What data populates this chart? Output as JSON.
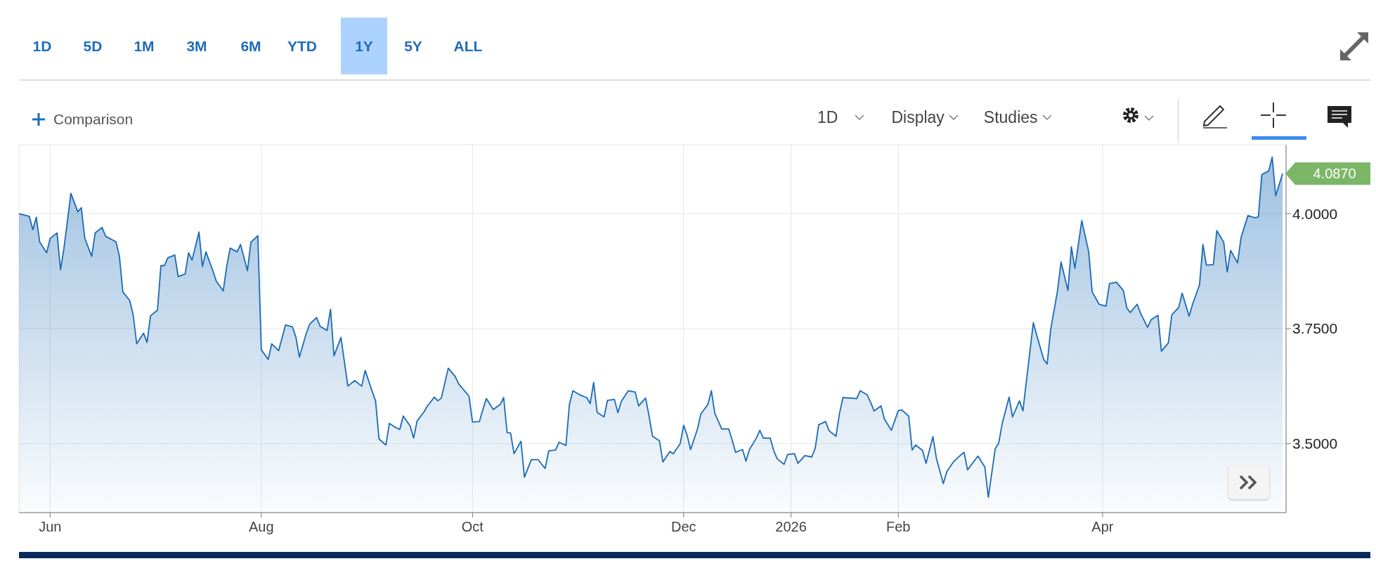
{
  "chart_data": {
    "type": "area",
    "grid": true,
    "annotations": [
      "1D",
      "5D",
      "1M",
      "3M",
      "6M",
      "YTD",
      "1Y",
      "5Y",
      "ALL",
      "Comparison",
      "1D",
      "Display",
      "Studies",
      {
        "text": "4.0870",
        "x": "2026-05-23",
        "y": 4.087
      }
    ],
    "xlim": [
      "2025-05-23",
      "2026-05-24"
    ],
    "xticks": [
      {
        "value": "2025-06-01",
        "label": "Jun"
      },
      {
        "value": "2025-08-01",
        "label": "Aug"
      },
      {
        "value": "2025-10-01",
        "label": "Oct"
      },
      {
        "value": "2025-12-01",
        "label": "Dec"
      },
      {
        "value": "2026-01-01",
        "label": "2026"
      },
      {
        "value": "2026-02-01",
        "label": "Feb"
      },
      {
        "value": "2026-04-01",
        "label": "Apr"
      }
    ],
    "ylim": [
      3.35,
      4.15
    ],
    "yticks": [
      {
        "value": 3.5,
        "label": "3.5000"
      },
      {
        "value": 3.75,
        "label": "3.7500"
      },
      {
        "value": 4.0,
        "label": "4.0000"
      }
    ],
    "series": [
      {
        "color": "#1a6bb5",
        "x": [
          "2025-05-23",
          "2025-05-26",
          "2025-05-27",
          "2025-05-28",
          "2025-05-29",
          "2025-05-31",
          "2025-06-01",
          "2025-06-03",
          "2025-06-04",
          "2025-06-05",
          "2025-06-07",
          "2025-06-09",
          "2025-06-10",
          "2025-06-11",
          "2025-06-13",
          "2025-06-14",
          "2025-06-16",
          "2025-06-17",
          "2025-06-20",
          "2025-06-21",
          "2025-06-22",
          "2025-06-24",
          "2025-06-25",
          "2025-06-26",
          "2025-06-28",
          "2025-06-29",
          "2025-06-30",
          "2025-07-02",
          "2025-07-03",
          "2025-07-04",
          "2025-07-05",
          "2025-07-07",
          "2025-07-08",
          "2025-07-10",
          "2025-07-11",
          "2025-07-12",
          "2025-07-14",
          "2025-07-15",
          "2025-07-16",
          "2025-07-18",
          "2025-07-19",
          "2025-07-21",
          "2025-07-22",
          "2025-07-23",
          "2025-07-25",
          "2025-07-26",
          "2025-07-28",
          "2025-07-29",
          "2025-07-31",
          "2025-08-01",
          "2025-08-03",
          "2025-08-04",
          "2025-08-06",
          "2025-08-08",
          "2025-08-10",
          "2025-08-11",
          "2025-08-12",
          "2025-08-14",
          "2025-08-15",
          "2025-08-17",
          "2025-08-18",
          "2025-08-20",
          "2025-08-21",
          "2025-08-22",
          "2025-08-24",
          "2025-08-25",
          "2025-08-26",
          "2025-08-28",
          "2025-08-30",
          "2025-08-31",
          "2025-09-02",
          "2025-09-03",
          "2025-09-04",
          "2025-09-06",
          "2025-09-07",
          "2025-09-09",
          "2025-09-10",
          "2025-09-11",
          "2025-09-13",
          "2025-09-14",
          "2025-09-15",
          "2025-09-17",
          "2025-09-18",
          "2025-09-20",
          "2025-09-21",
          "2025-09-22",
          "2025-09-24",
          "2025-09-26",
          "2025-09-27",
          "2025-09-30",
          "2025-10-01",
          "2025-10-03",
          "2025-10-04",
          "2025-10-05",
          "2025-10-07",
          "2025-10-09",
          "2025-10-10",
          "2025-10-11",
          "2025-10-12",
          "2025-10-13",
          "2025-10-15",
          "2025-10-16",
          "2025-10-18",
          "2025-10-20",
          "2025-10-21",
          "2025-10-22",
          "2025-10-23",
          "2025-10-25",
          "2025-10-26",
          "2025-10-28",
          "2025-10-29",
          "2025-10-30",
          "2025-11-01",
          "2025-11-03",
          "2025-11-04",
          "2025-11-05",
          "2025-11-06",
          "2025-11-08",
          "2025-11-09",
          "2025-11-11",
          "2025-11-12",
          "2025-11-13",
          "2025-11-15",
          "2025-11-17",
          "2025-11-18",
          "2025-11-20",
          "2025-11-21",
          "2025-11-22",
          "2025-11-24",
          "2025-11-25",
          "2025-11-27",
          "2025-11-28",
          "2025-11-30",
          "2025-12-01",
          "2025-12-02",
          "2025-12-03",
          "2025-12-05",
          "2025-12-06",
          "2025-12-08",
          "2025-12-09",
          "2025-12-10",
          "2025-12-12",
          "2025-12-14",
          "2025-12-15",
          "2025-12-16",
          "2025-12-18",
          "2025-12-19",
          "2025-12-20",
          "2025-12-22",
          "2025-12-23",
          "2025-12-24",
          "2025-12-26",
          "2025-12-27",
          "2025-12-28",
          "2025-12-30",
          "2025-12-31",
          "2026-01-02",
          "2026-01-03",
          "2026-01-05",
          "2026-01-07",
          "2026-01-08",
          "2026-01-09",
          "2026-01-11",
          "2026-01-12",
          "2026-01-14",
          "2026-01-15",
          "2026-01-16",
          "2026-01-20",
          "2026-01-21",
          "2026-01-23",
          "2026-01-24",
          "2026-01-25",
          "2026-01-27",
          "2026-01-28",
          "2026-01-30",
          "2026-02-01",
          "2026-02-02",
          "2026-02-04",
          "2026-02-05",
          "2026-02-06",
          "2026-02-08",
          "2026-02-09",
          "2026-02-11",
          "2026-02-12",
          "2026-02-14",
          "2026-02-15",
          "2026-02-17",
          "2026-02-19",
          "2026-02-20",
          "2026-02-21",
          "2026-02-23",
          "2026-02-24",
          "2026-02-26",
          "2026-02-27",
          "2026-03-01",
          "2026-03-02",
          "2026-03-03",
          "2026-03-05",
          "2026-03-06",
          "2026-03-08",
          "2026-03-09",
          "2026-03-10",
          "2026-03-12",
          "2026-03-13",
          "2026-03-15",
          "2026-03-16",
          "2026-03-17",
          "2026-03-19",
          "2026-03-20",
          "2026-03-22",
          "2026-03-23",
          "2026-03-24",
          "2026-03-26",
          "2026-03-28",
          "2026-03-29",
          "2026-03-31",
          "2026-04-02",
          "2026-04-03",
          "2026-04-05",
          "2026-04-07",
          "2026-04-08",
          "2026-04-09",
          "2026-04-11",
          "2026-04-12",
          "2026-04-14",
          "2026-04-15",
          "2026-04-17",
          "2026-04-18",
          "2026-04-20",
          "2026-04-21",
          "2026-04-23",
          "2026-04-24",
          "2026-04-26",
          "2026-04-27",
          "2026-04-29",
          "2026-04-30",
          "2026-05-01",
          "2026-05-03",
          "2026-05-04",
          "2026-05-06",
          "2026-05-07",
          "2026-05-08",
          "2026-05-10",
          "2026-05-11",
          "2026-05-13",
          "2026-05-15",
          "2026-05-16",
          "2026-05-17",
          "2026-05-19",
          "2026-05-20",
          "2026-05-21",
          "2026-05-23"
        ],
        "values": [
          4.0,
          3.994,
          3.965,
          3.992,
          3.938,
          3.915,
          3.946,
          3.958,
          3.878,
          3.925,
          4.044,
          4.004,
          4.013,
          3.947,
          3.907,
          3.958,
          3.97,
          3.951,
          3.939,
          3.908,
          3.83,
          3.811,
          3.779,
          3.717,
          3.74,
          3.72,
          3.778,
          3.79,
          3.887,
          3.887,
          3.904,
          3.91,
          3.863,
          3.869,
          3.915,
          3.899,
          3.96,
          3.885,
          3.917,
          3.876,
          3.853,
          3.832,
          3.885,
          3.925,
          3.917,
          3.933,
          3.876,
          3.938,
          3.952,
          3.704,
          3.683,
          3.717,
          3.702,
          3.758,
          3.754,
          3.731,
          3.688,
          3.74,
          3.76,
          3.774,
          3.755,
          3.746,
          3.792,
          3.691,
          3.731,
          3.678,
          3.625,
          3.637,
          3.625,
          3.659,
          3.614,
          3.593,
          3.51,
          3.497,
          3.544,
          3.534,
          3.531,
          3.56,
          3.538,
          3.512,
          3.549,
          3.569,
          3.582,
          3.601,
          3.593,
          3.599,
          3.664,
          3.646,
          3.63,
          3.603,
          3.547,
          3.548,
          3.574,
          3.598,
          3.574,
          3.585,
          3.6,
          3.524,
          3.523,
          3.478,
          3.505,
          3.427,
          3.465,
          3.465,
          3.455,
          3.446,
          3.484,
          3.486,
          3.503,
          3.496,
          3.585,
          3.615,
          3.606,
          3.6,
          3.587,
          3.633,
          3.568,
          3.558,
          3.594,
          3.596,
          3.567,
          3.592,
          3.615,
          3.612,
          3.582,
          3.599,
          3.56,
          3.516,
          3.506,
          3.46,
          3.483,
          3.478,
          3.5,
          3.54,
          3.518,
          3.487,
          3.532,
          3.565,
          3.585,
          3.615,
          3.566,
          3.532,
          3.532,
          3.508,
          3.481,
          3.487,
          3.462,
          3.487,
          3.512,
          3.529,
          3.512,
          3.512,
          3.485,
          3.467,
          3.455,
          3.476,
          3.478,
          3.457,
          3.474,
          3.471,
          3.49,
          3.541,
          3.548,
          3.528,
          3.516,
          3.565,
          3.6,
          3.598,
          3.615,
          3.606,
          3.59,
          3.571,
          3.582,
          3.553,
          3.529,
          3.572,
          3.573,
          3.56,
          3.486,
          3.497,
          3.485,
          3.457,
          3.515,
          3.468,
          3.413,
          3.439,
          3.461,
          3.475,
          3.481,
          3.443,
          3.463,
          3.473,
          3.449,
          3.383,
          3.489,
          3.501,
          3.543,
          3.601,
          3.558,
          3.593,
          3.571,
          3.636,
          3.763,
          3.735,
          3.683,
          3.673,
          3.747,
          3.833,
          3.895,
          3.833,
          3.928,
          3.881,
          3.985,
          3.917,
          3.83,
          3.803,
          3.799,
          3.848,
          3.851,
          3.833,
          3.795,
          3.785,
          3.803,
          3.783,
          3.753,
          3.769,
          3.779,
          3.701,
          3.719,
          3.78,
          3.796,
          3.827,
          3.777,
          3.803,
          3.845,
          3.933,
          3.888,
          3.889,
          3.963,
          3.938,
          3.873,
          3.92,
          3.893,
          3.948,
          3.996,
          3.991,
          3.993,
          4.085,
          4.093,
          4.123,
          4.039,
          4.087
        ]
      }
    ]
  }
}
